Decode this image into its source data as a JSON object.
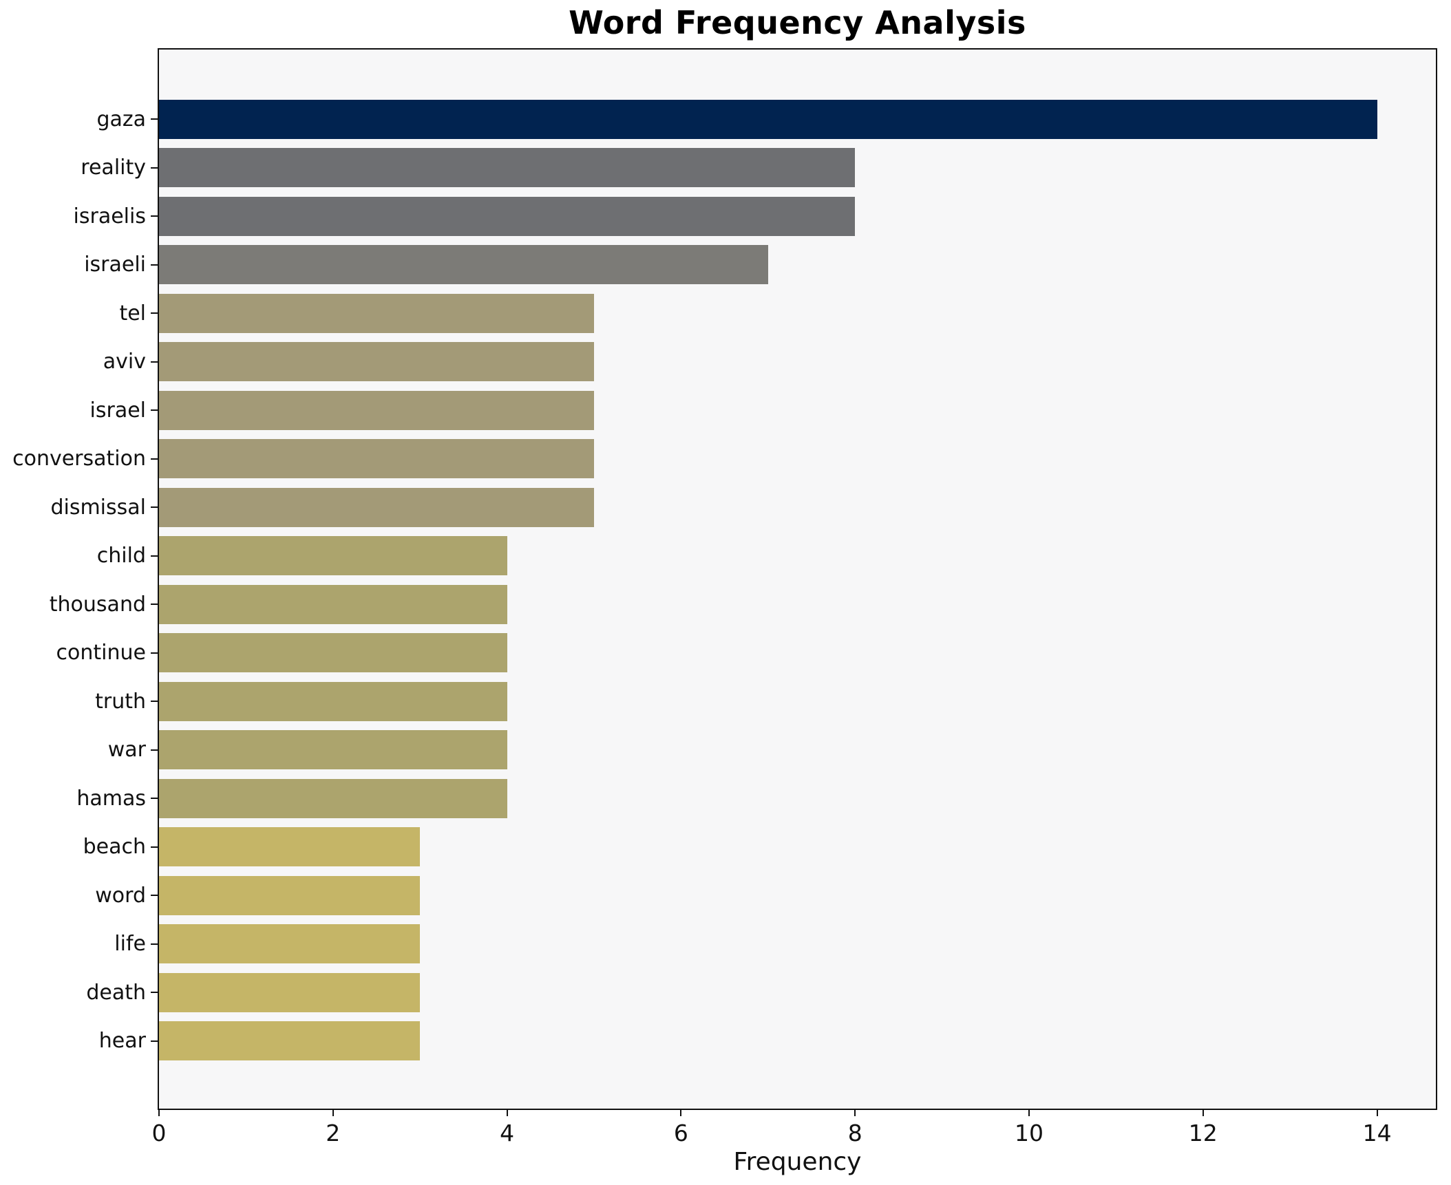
{
  "chart_data": {
    "type": "bar",
    "orientation": "horizontal",
    "title": "Word Frequency Analysis",
    "xlabel": "Frequency",
    "ylabel": "",
    "categories": [
      "gaza",
      "reality",
      "israelis",
      "israeli",
      "tel",
      "aviv",
      "israel",
      "conversation",
      "dismissal",
      "child",
      "thousand",
      "continue",
      "truth",
      "war",
      "hamas",
      "beach",
      "word",
      "life",
      "death",
      "hear"
    ],
    "values": [
      14,
      8,
      8,
      7,
      5,
      5,
      5,
      5,
      5,
      4,
      4,
      4,
      4,
      4,
      4,
      3,
      3,
      3,
      3,
      3
    ],
    "bar_colors": [
      "#012350",
      "#6e6f72",
      "#6e6f72",
      "#7c7b77",
      "#a39a77",
      "#a39a77",
      "#a39a77",
      "#a39a77",
      "#a39a77",
      "#aca46d",
      "#aca46d",
      "#aca46d",
      "#aca46d",
      "#aca46d",
      "#aca46d",
      "#c5b567",
      "#c5b567",
      "#c5b567",
      "#c5b567",
      "#c5b567"
    ],
    "xlim": [
      0,
      14.7
    ],
    "xticks": [
      0,
      2,
      4,
      6,
      8,
      10,
      12,
      14
    ],
    "grid": false,
    "legend_position": "none",
    "plot_background": "#f7f7f8",
    "figure_background": "#ffffff",
    "spine_color": "#111111"
  }
}
